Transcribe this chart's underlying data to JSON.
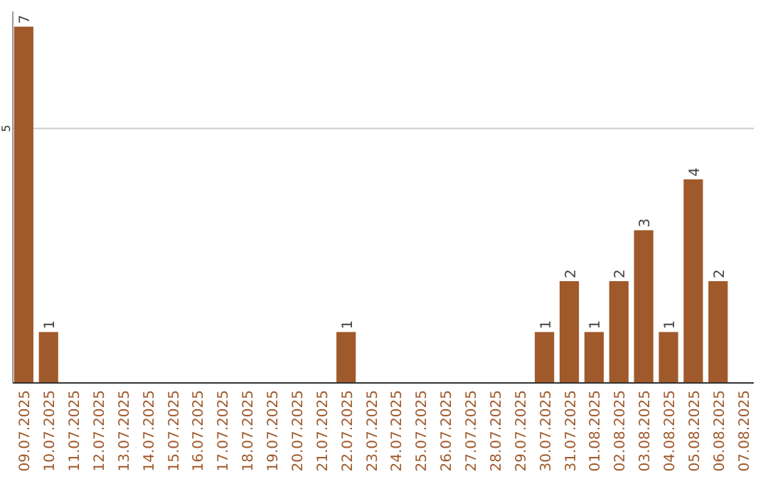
{
  "chart_data": {
    "type": "bar",
    "categories": [
      "09.07.2025",
      "10.07.2025",
      "11.07.2025",
      "12.07.2025",
      "13.07.2025",
      "14.07.2025",
      "15.07.2025",
      "16.07.2025",
      "17.07.2025",
      "18.07.2025",
      "19.07.2025",
      "20.07.2025",
      "21.07.2025",
      "22.07.2025",
      "23.07.2025",
      "24.07.2025",
      "25.07.2025",
      "26.07.2025",
      "27.07.2025",
      "28.07.2025",
      "29.07.2025",
      "30.07.2025",
      "31.07.2025",
      "01.08.2025",
      "02.08.2025",
      "03.08.2025",
      "04.08.2025",
      "05.08.2025",
      "06.08.2025",
      "07.08.2025"
    ],
    "values": [
      7,
      1,
      0,
      0,
      0,
      0,
      0,
      0,
      0,
      0,
      0,
      0,
      0,
      1,
      0,
      0,
      0,
      0,
      0,
      0,
      0,
      1,
      2,
      1,
      2,
      3,
      1,
      4,
      2,
      0
    ],
    "value_labels": [
      "7",
      "1",
      null,
      null,
      null,
      null,
      null,
      null,
      null,
      null,
      null,
      null,
      null,
      "1",
      null,
      null,
      null,
      null,
      null,
      null,
      null,
      "1",
      "2",
      "1",
      "2",
      "3",
      "1",
      "4",
      "2",
      null
    ],
    "color": "#a0592b",
    "ylim": [
      0,
      7.3
    ],
    "yticks": [
      5
    ],
    "grid": "y"
  }
}
